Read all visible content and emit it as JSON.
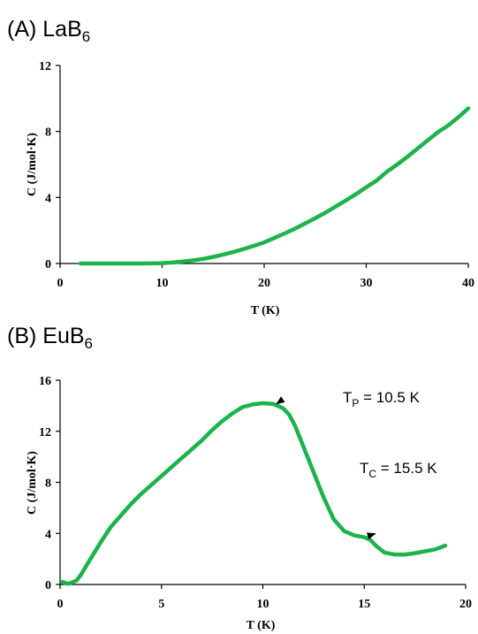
{
  "colors": {
    "line": "#1db34b",
    "axis": "#000000"
  },
  "chart_data": [
    {
      "type": "line",
      "panel_label": "(A) LaB",
      "panel_sub": "6",
      "xlabel": "T (K)",
      "ylabel": "C (J/mol·K)",
      "xlim": [
        0,
        40
      ],
      "ylim": [
        0,
        12
      ],
      "xticks": [
        0,
        10,
        20,
        30,
        40
      ],
      "yticks": [
        0,
        4,
        8,
        12
      ],
      "grid": false,
      "series": [
        {
          "x": [
            2,
            4,
            6,
            8,
            10,
            11,
            12,
            13,
            14,
            15,
            16,
            17,
            18,
            19,
            20,
            21,
            22,
            23,
            24,
            25,
            26,
            27,
            28,
            29,
            30,
            31,
            32,
            33,
            34,
            35,
            36,
            37,
            38,
            39,
            40
          ],
          "y": [
            0,
            0,
            0,
            0,
            0.02,
            0.06,
            0.12,
            0.19,
            0.28,
            0.4,
            0.54,
            0.7,
            0.88,
            1.07,
            1.28,
            1.55,
            1.82,
            2.1,
            2.42,
            2.75,
            3.08,
            3.45,
            3.82,
            4.2,
            4.62,
            5.02,
            5.55,
            5.98,
            6.45,
            6.95,
            7.45,
            7.95,
            8.35,
            8.85,
            9.4
          ]
        }
      ],
      "annotations": []
    },
    {
      "type": "line",
      "panel_label": "(B) EuB",
      "panel_sub": "6",
      "xlabel": "T (K)",
      "ylabel": "C (J/mol·K)",
      "xlim": [
        0,
        20
      ],
      "ylim": [
        0,
        16
      ],
      "xticks": [
        0,
        5,
        10,
        15,
        20
      ],
      "yticks": [
        0,
        4,
        8,
        12,
        16
      ],
      "grid": false,
      "series": [
        {
          "x": [
            0.1,
            0.4,
            0.8,
            1.0,
            1.5,
            2.0,
            2.5,
            3.0,
            3.5,
            4.0,
            4.5,
            5.0,
            5.5,
            6.0,
            6.5,
            7.0,
            7.5,
            8.0,
            8.5,
            9.0,
            9.5,
            10.0,
            10.5,
            11.0,
            11.3,
            11.6,
            12.0,
            12.5,
            13.0,
            13.5,
            14.0,
            14.5,
            15.0,
            15.3,
            15.6,
            16.0,
            16.5,
            17.0,
            17.5,
            18.0,
            18.5,
            19.0
          ],
          "y": [
            0.2,
            0.05,
            0.3,
            0.7,
            2.0,
            3.3,
            4.5,
            5.4,
            6.3,
            7.1,
            7.8,
            8.5,
            9.2,
            9.9,
            10.6,
            11.3,
            12.1,
            12.8,
            13.4,
            13.9,
            14.1,
            14.2,
            14.15,
            13.8,
            13.3,
            12.4,
            10.8,
            8.8,
            6.8,
            5.1,
            4.2,
            3.85,
            3.7,
            3.5,
            3.0,
            2.5,
            2.35,
            2.35,
            2.45,
            2.6,
            2.75,
            3.05
          ]
        }
      ],
      "annotations": [
        {
          "text": "T",
          "sub": "P",
          "rest": " = 10.5 K",
          "x": 10.5,
          "y": 14.15
        },
        {
          "text": "T",
          "sub": "C",
          "rest": " = 15.5 K",
          "x": 15.5,
          "y": 3.7
        }
      ]
    }
  ]
}
